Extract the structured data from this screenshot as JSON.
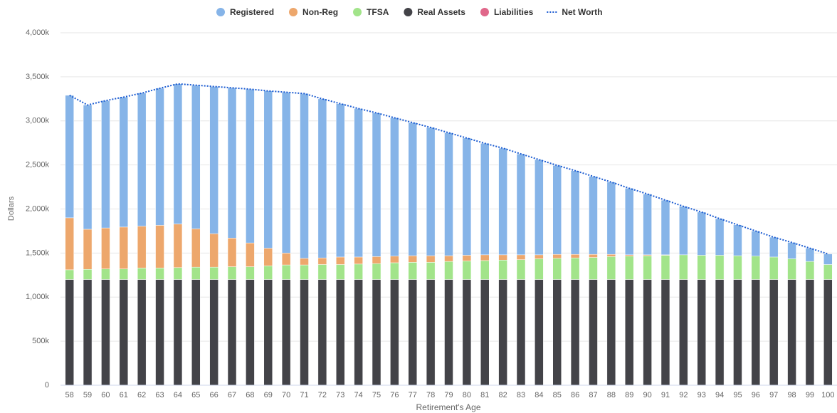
{
  "chart_data": {
    "type": "bar",
    "stacked": true,
    "x_label": "Retirement's Age",
    "y_label": "Dollars",
    "categories": [
      "58",
      "59",
      "60",
      "61",
      "62",
      "63",
      "64",
      "65",
      "66",
      "67",
      "68",
      "69",
      "70",
      "71",
      "72",
      "73",
      "74",
      "75",
      "76",
      "77",
      "78",
      "79",
      "80",
      "81",
      "82",
      "83",
      "84",
      "85",
      "86",
      "87",
      "88",
      "89",
      "90",
      "91",
      "92",
      "93",
      "94",
      "95",
      "96",
      "97",
      "98",
      "99",
      "100"
    ],
    "ylim": [
      0,
      4000000
    ],
    "yticks": [
      0,
      {
        "value": 500000,
        "label": "500k"
      },
      {
        "value": 1000000,
        "label": "1,000k"
      },
      {
        "value": 1500000,
        "label": "1,500k"
      },
      {
        "value": 2000000,
        "label": "2,000k"
      },
      {
        "value": 2500000,
        "label": "2,500k"
      },
      {
        "value": 3000000,
        "label": "3,000k"
      },
      {
        "value": 3500000,
        "label": "3,500k"
      },
      {
        "value": 4000000,
        "label": "4,000k"
      }
    ],
    "grid": true,
    "legend": "top",
    "series": [
      {
        "name": "Registered",
        "color": "#86b4e8",
        "values": [
          1390000,
          1410000,
          1445000,
          1475000,
          1510000,
          1555000,
          1590000,
          1630000,
          1670000,
          1705000,
          1745000,
          1785000,
          1825000,
          1870000,
          1805000,
          1740000,
          1685000,
          1630000,
          1570000,
          1510000,
          1455000,
          1395000,
          1330000,
          1265000,
          1210000,
          1145000,
          1080000,
          1010000,
          950000,
          885000,
          820000,
          755000,
          690000,
          620000,
          550000,
          490000,
          415000,
          350000,
          285000,
          225000,
          185000,
          150000,
          120000
        ]
      },
      {
        "name": "Non-Reg",
        "color": "#eda76c",
        "values": [
          590000,
          455000,
          465000,
          475000,
          475000,
          485000,
          495000,
          435000,
          380000,
          325000,
          270000,
          200000,
          135000,
          75000,
          75000,
          85000,
          80000,
          80000,
          75000,
          75000,
          75000,
          65000,
          65000,
          65000,
          60000,
          55000,
          45000,
          45000,
          40000,
          35000,
          25000,
          15000,
          10000,
          5000,
          0,
          0,
          0,
          0,
          0,
          0,
          0,
          0,
          0
        ]
      },
      {
        "name": "TFSA",
        "color": "#a2e48a",
        "values": [
          110000,
          115000,
          120000,
          120000,
          130000,
          130000,
          135000,
          140000,
          140000,
          145000,
          145000,
          155000,
          165000,
          165000,
          170000,
          170000,
          175000,
          180000,
          190000,
          195000,
          195000,
          205000,
          210000,
          215000,
          220000,
          225000,
          235000,
          240000,
          245000,
          250000,
          260000,
          265000,
          270000,
          275000,
          280000,
          275000,
          275000,
          270000,
          265000,
          255000,
          235000,
          205000,
          170000
        ]
      },
      {
        "name": "Real Assets",
        "color": "#434348",
        "values": [
          1200000,
          1200000,
          1200000,
          1200000,
          1200000,
          1200000,
          1200000,
          1200000,
          1200000,
          1200000,
          1200000,
          1200000,
          1200000,
          1200000,
          1200000,
          1200000,
          1200000,
          1200000,
          1200000,
          1200000,
          1200000,
          1200000,
          1200000,
          1200000,
          1200000,
          1200000,
          1200000,
          1200000,
          1200000,
          1200000,
          1200000,
          1200000,
          1200000,
          1200000,
          1200000,
          1200000,
          1200000,
          1200000,
          1200000,
          1200000,
          1200000,
          1200000,
          1200000
        ]
      },
      {
        "name": "Liabilities",
        "color": "#e0678a",
        "values": [
          0,
          0,
          0,
          0,
          0,
          0,
          0,
          0,
          0,
          0,
          0,
          0,
          0,
          0,
          0,
          0,
          0,
          0,
          0,
          0,
          0,
          0,
          0,
          0,
          0,
          0,
          0,
          0,
          0,
          0,
          0,
          0,
          0,
          0,
          0,
          0,
          0,
          0,
          0,
          0,
          0,
          0,
          0
        ]
      },
      {
        "name": "Net Worth",
        "type": "line",
        "color": "#1b5bd1",
        "values": [
          3290000,
          3180000,
          3230000,
          3270000,
          3315000,
          3370000,
          3420000,
          3405000,
          3390000,
          3375000,
          3360000,
          3340000,
          3325000,
          3310000,
          3250000,
          3195000,
          3140000,
          3090000,
          3035000,
          2980000,
          2925000,
          2865000,
          2805000,
          2745000,
          2690000,
          2625000,
          2560000,
          2495000,
          2435000,
          2370000,
          2305000,
          2235000,
          2170000,
          2100000,
          2030000,
          1965000,
          1890000,
          1820000,
          1750000,
          1680000,
          1620000,
          1555000,
          1490000
        ]
      }
    ]
  }
}
